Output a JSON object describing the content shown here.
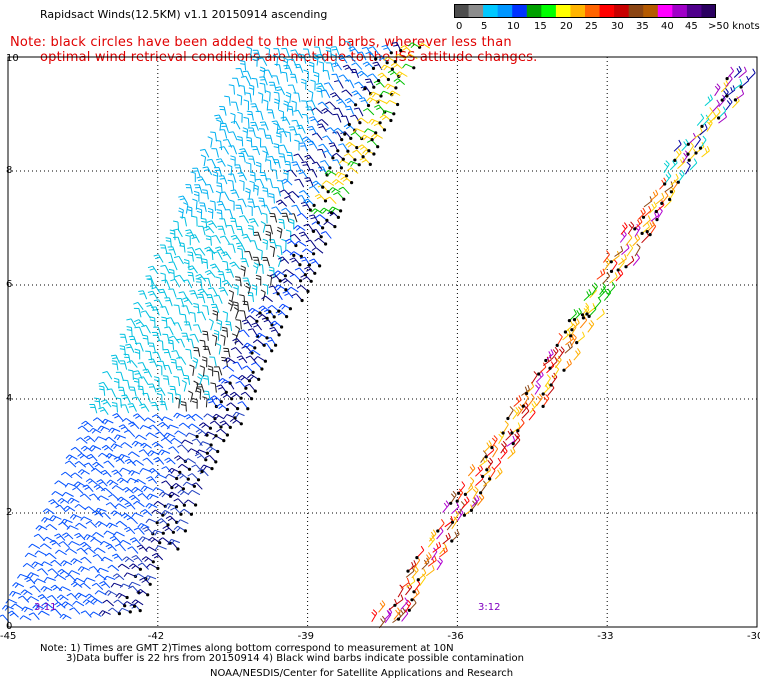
{
  "title": "Rapidsact Winds(12.5KM) v1.1 20150914 ascending",
  "note_line1": "Note: black circles have been added to the wind barbs, wherever less than",
  "note_line2": "optimal wind retrieval conditions are met due to the ISS attitude changes.",
  "colorbar": {
    "colors": [
      "#4d4d4d",
      "#8c8c8c",
      "#00c8ff",
      "#0096ff",
      "#0032ff",
      "#00a000",
      "#00ff00",
      "#ffff00",
      "#ffb400",
      "#ff6400",
      "#ff0000",
      "#c80000",
      "#8b4513",
      "#b45a00",
      "#ff00ff",
      "#a000c8",
      "#50008c",
      "#2a0060"
    ],
    "labels": [
      "0",
      "5",
      "10",
      "15",
      "20",
      "25",
      "30",
      "35",
      "40",
      "45",
      ">50 knots"
    ]
  },
  "map": {
    "x_ticks": [
      "-45",
      "-42",
      "-39",
      "-36",
      "-33",
      "-30"
    ],
    "y_ticks": [
      "0",
      "2",
      "4",
      "6",
      "8",
      "10"
    ],
    "time_labels": [
      "3:11",
      "3:12"
    ]
  },
  "footer": {
    "line1": "Note: 1) Times are GMT 2)Times along bottom correspond to measurement at 10N",
    "line2": "3)Data buffer is 22 hrs from 20150914 4) Black wind barbs indicate possible contamination",
    "line3": "NOAA/NESDIS/Center for Satellite Applications and Research"
  }
}
